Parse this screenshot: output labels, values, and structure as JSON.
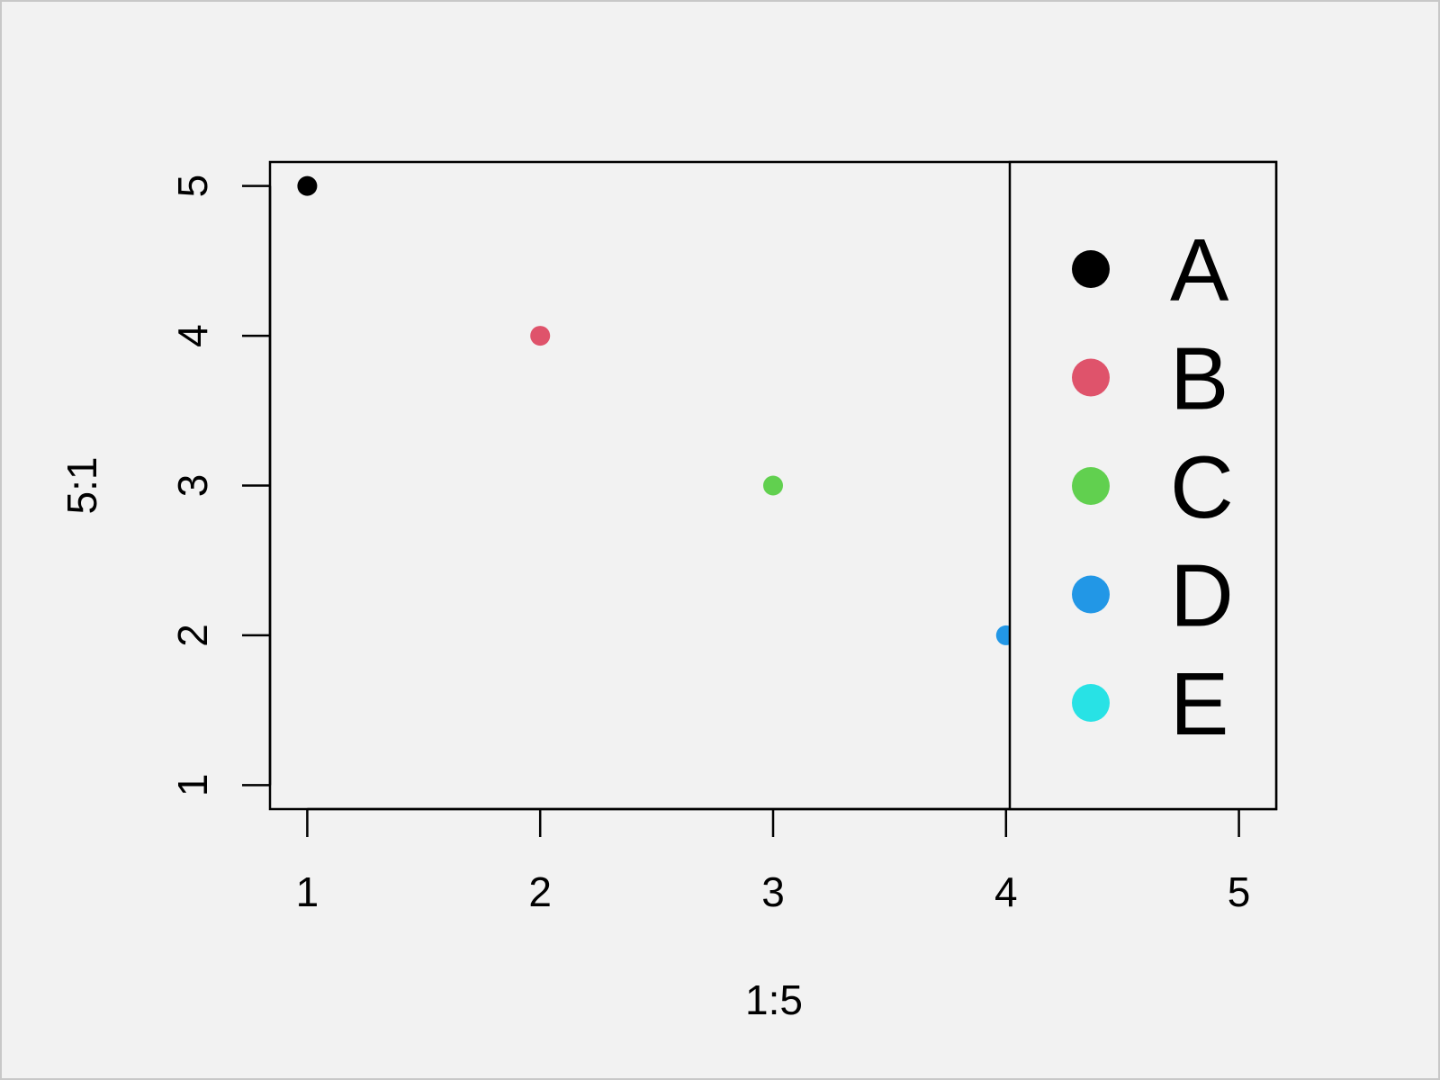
{
  "chart_data": {
    "type": "scatter",
    "xlabel": "1:5",
    "ylabel": "5:1",
    "xlim": [
      0.84,
      5.16
    ],
    "ylim": [
      0.84,
      5.16
    ],
    "x_ticks": [
      "1",
      "2",
      "3",
      "4",
      "5"
    ],
    "y_ticks": [
      "1",
      "2",
      "3",
      "4",
      "5"
    ],
    "grid": false,
    "legend_position": "right",
    "points": [
      {
        "x": 1,
        "y": 5,
        "color": "#000000"
      },
      {
        "x": 2,
        "y": 4,
        "color": "#DF536B"
      },
      {
        "x": 3,
        "y": 3,
        "color": "#61D04F"
      },
      {
        "x": 4,
        "y": 2,
        "color": "#2297E6"
      },
      {
        "x": 5,
        "y": 1,
        "color": "#28E2E5"
      }
    ],
    "legend": [
      {
        "label": "A",
        "color": "#000000"
      },
      {
        "label": "B",
        "color": "#DF536B"
      },
      {
        "label": "C",
        "color": "#61D04F"
      },
      {
        "label": "D",
        "color": "#2297E6"
      },
      {
        "label": "E",
        "color": "#28E2E5"
      }
    ]
  }
}
